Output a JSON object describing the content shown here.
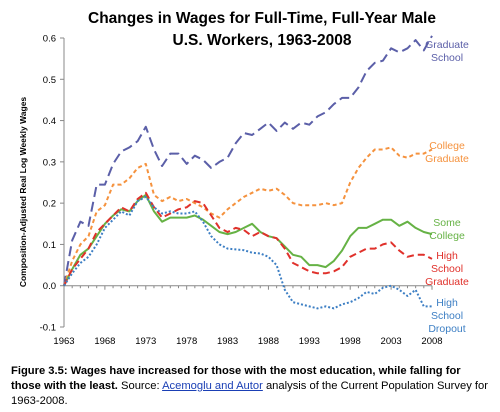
{
  "chart_data": {
    "type": "line",
    "title": [
      "Changes in Wages for Full-Time, Full-Year Male",
      "U.S. Workers, 1963-2008"
    ],
    "ylabel": "Composition-Adjusted Real Log Weekly Wages",
    "xlabel": "",
    "xlim": [
      1963,
      2008
    ],
    "ylim": [
      -0.1,
      0.6
    ],
    "x_ticks": [
      1963,
      1968,
      1973,
      1978,
      1983,
      1988,
      1993,
      1998,
      2003,
      2008
    ],
    "y_ticks": [
      -0.1,
      0.0,
      0.1,
      0.2,
      0.3,
      0.4,
      0.5,
      0.6
    ],
    "y_tick_labels": [
      "-0.1",
      "0.0",
      "0.1",
      "0.2",
      "0.3",
      "0.4",
      "0.5",
      "0.6"
    ],
    "grid": false,
    "legend": "inline-right",
    "x": [
      1963,
      1964,
      1965,
      1966,
      1967,
      1968,
      1969,
      1970,
      1971,
      1972,
      1973,
      1974,
      1975,
      1976,
      1977,
      1978,
      1979,
      1980,
      1981,
      1982,
      1983,
      1984,
      1985,
      1986,
      1987,
      1988,
      1989,
      1990,
      1991,
      1992,
      1993,
      1994,
      1995,
      1996,
      1997,
      1998,
      1999,
      2000,
      2001,
      2002,
      2003,
      2004,
      2005,
      2006,
      2007,
      2008
    ],
    "series": [
      {
        "name": "Graduate School",
        "label_lines": [
          "Graduate",
          "School"
        ],
        "color": "#5b5fa8",
        "dash": "10,5",
        "values": [
          0.0,
          0.11,
          0.155,
          0.145,
          0.245,
          0.245,
          0.295,
          0.325,
          0.335,
          0.35,
          0.385,
          0.33,
          0.29,
          0.32,
          0.32,
          0.295,
          0.315,
          0.305,
          0.285,
          0.3,
          0.31,
          0.345,
          0.37,
          0.365,
          0.38,
          0.395,
          0.375,
          0.395,
          0.38,
          0.395,
          0.39,
          0.41,
          0.42,
          0.44,
          0.455,
          0.455,
          0.48,
          0.52,
          0.54,
          0.545,
          0.575,
          0.565,
          0.575,
          0.595,
          0.57,
          0.605
        ]
      },
      {
        "name": "College Graduate",
        "label_lines": [
          "College",
          "Graduate"
        ],
        "color": "#f5923e",
        "dash": "4,3",
        "values": [
          0.0,
          0.06,
          0.1,
          0.12,
          0.18,
          0.195,
          0.245,
          0.245,
          0.26,
          0.285,
          0.295,
          0.22,
          0.205,
          0.215,
          0.205,
          0.21,
          0.2,
          0.19,
          0.175,
          0.165,
          0.185,
          0.2,
          0.215,
          0.225,
          0.235,
          0.23,
          0.235,
          0.22,
          0.2,
          0.195,
          0.195,
          0.195,
          0.2,
          0.195,
          0.2,
          0.25,
          0.285,
          0.31,
          0.33,
          0.33,
          0.335,
          0.315,
          0.31,
          0.32,
          0.32,
          0.33
        ]
      },
      {
        "name": "Some College",
        "label_lines": [
          "Some",
          "College"
        ],
        "color": "#66b245",
        "dash": "",
        "values": [
          0.0,
          0.04,
          0.075,
          0.09,
          0.12,
          0.15,
          0.17,
          0.185,
          0.18,
          0.205,
          0.22,
          0.18,
          0.155,
          0.165,
          0.165,
          0.165,
          0.17,
          0.16,
          0.145,
          0.13,
          0.125,
          0.13,
          0.14,
          0.15,
          0.13,
          0.12,
          0.115,
          0.095,
          0.075,
          0.07,
          0.05,
          0.05,
          0.045,
          0.06,
          0.085,
          0.12,
          0.14,
          0.14,
          0.15,
          0.16,
          0.16,
          0.145,
          0.155,
          0.14,
          0.13,
          0.125
        ]
      },
      {
        "name": "High School Graduate",
        "label_lines": [
          "High",
          "School",
          "Graduate"
        ],
        "color": "#e0312b",
        "dash": "7,4",
        "values": [
          0.0,
          0.04,
          0.065,
          0.09,
          0.13,
          0.15,
          0.17,
          0.19,
          0.18,
          0.21,
          0.225,
          0.19,
          0.165,
          0.175,
          0.185,
          0.19,
          0.205,
          0.2,
          0.17,
          0.14,
          0.13,
          0.14,
          0.135,
          0.12,
          0.13,
          0.12,
          0.115,
          0.09,
          0.055,
          0.045,
          0.035,
          0.03,
          0.03,
          0.035,
          0.045,
          0.07,
          0.08,
          0.09,
          0.09,
          0.1,
          0.105,
          0.085,
          0.07,
          0.075,
          0.075,
          0.065
        ]
      },
      {
        "name": "High School Dropout",
        "label_lines": [
          "High",
          "School",
          "Dropout"
        ],
        "color": "#3d7fc4",
        "dash": "2,2",
        "values": [
          0.0,
          0.03,
          0.055,
          0.07,
          0.1,
          0.14,
          0.16,
          0.18,
          0.17,
          0.205,
          0.215,
          0.19,
          0.175,
          0.18,
          0.175,
          0.175,
          0.18,
          0.155,
          0.12,
          0.1,
          0.09,
          0.088,
          0.086,
          0.08,
          0.078,
          0.07,
          0.05,
          -0.01,
          -0.04,
          -0.045,
          -0.05,
          -0.055,
          -0.05,
          -0.055,
          -0.045,
          -0.04,
          -0.03,
          -0.015,
          -0.02,
          -0.005,
          0.0,
          -0.01,
          -0.025,
          -0.01,
          -0.05,
          -0.05
        ]
      }
    ]
  },
  "caption": {
    "figure_label": "Figure 3.5: Wages have increased for those with the most education, while falling for those with the least.",
    "source_prefix": " Source: ",
    "source_link": "Acemoglu and Autor",
    "source_suffix": " analysis of the Current Population Survey for 1963-2008."
  }
}
